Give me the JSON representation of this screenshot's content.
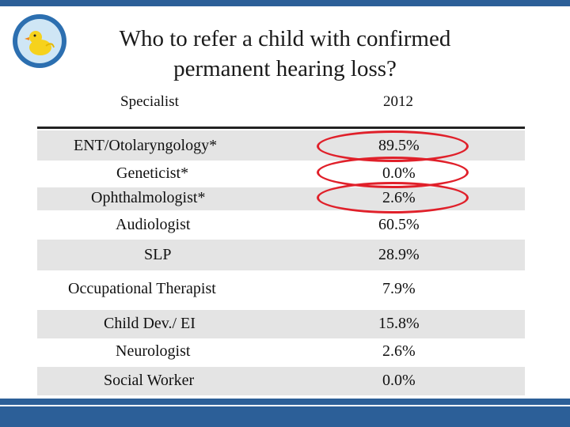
{
  "title": {
    "line1": "Who to refer a child with confirmed",
    "line2": "permanent hearing loss?"
  },
  "table": {
    "headers": [
      "Specialist",
      "2012"
    ],
    "rows": [
      {
        "specialist": "ENT/Otolaryngology*",
        "value": "89.5%"
      },
      {
        "specialist": "Geneticist*",
        "value": "0.0%"
      },
      {
        "specialist": "Ophthalmologist*",
        "value": "2.6%"
      },
      {
        "specialist": "Audiologist",
        "value": "60.5%"
      },
      {
        "specialist": "SLP",
        "value": "28.9%"
      },
      {
        "specialist": "Occupational Therapist",
        "value": "7.9%"
      },
      {
        "specialist": "Child Dev./ EI",
        "value": "15.8%"
      },
      {
        "specialist": "Neurologist",
        "value": "2.6%"
      },
      {
        "specialist": "Social Worker",
        "value": "0.0%"
      }
    ]
  },
  "colors": {
    "accent_bar": "#2c5f98",
    "highlight_oval": "#e0202a",
    "row_shade": "#e4e4e4"
  },
  "icons": [
    "duck-logo-icon"
  ]
}
